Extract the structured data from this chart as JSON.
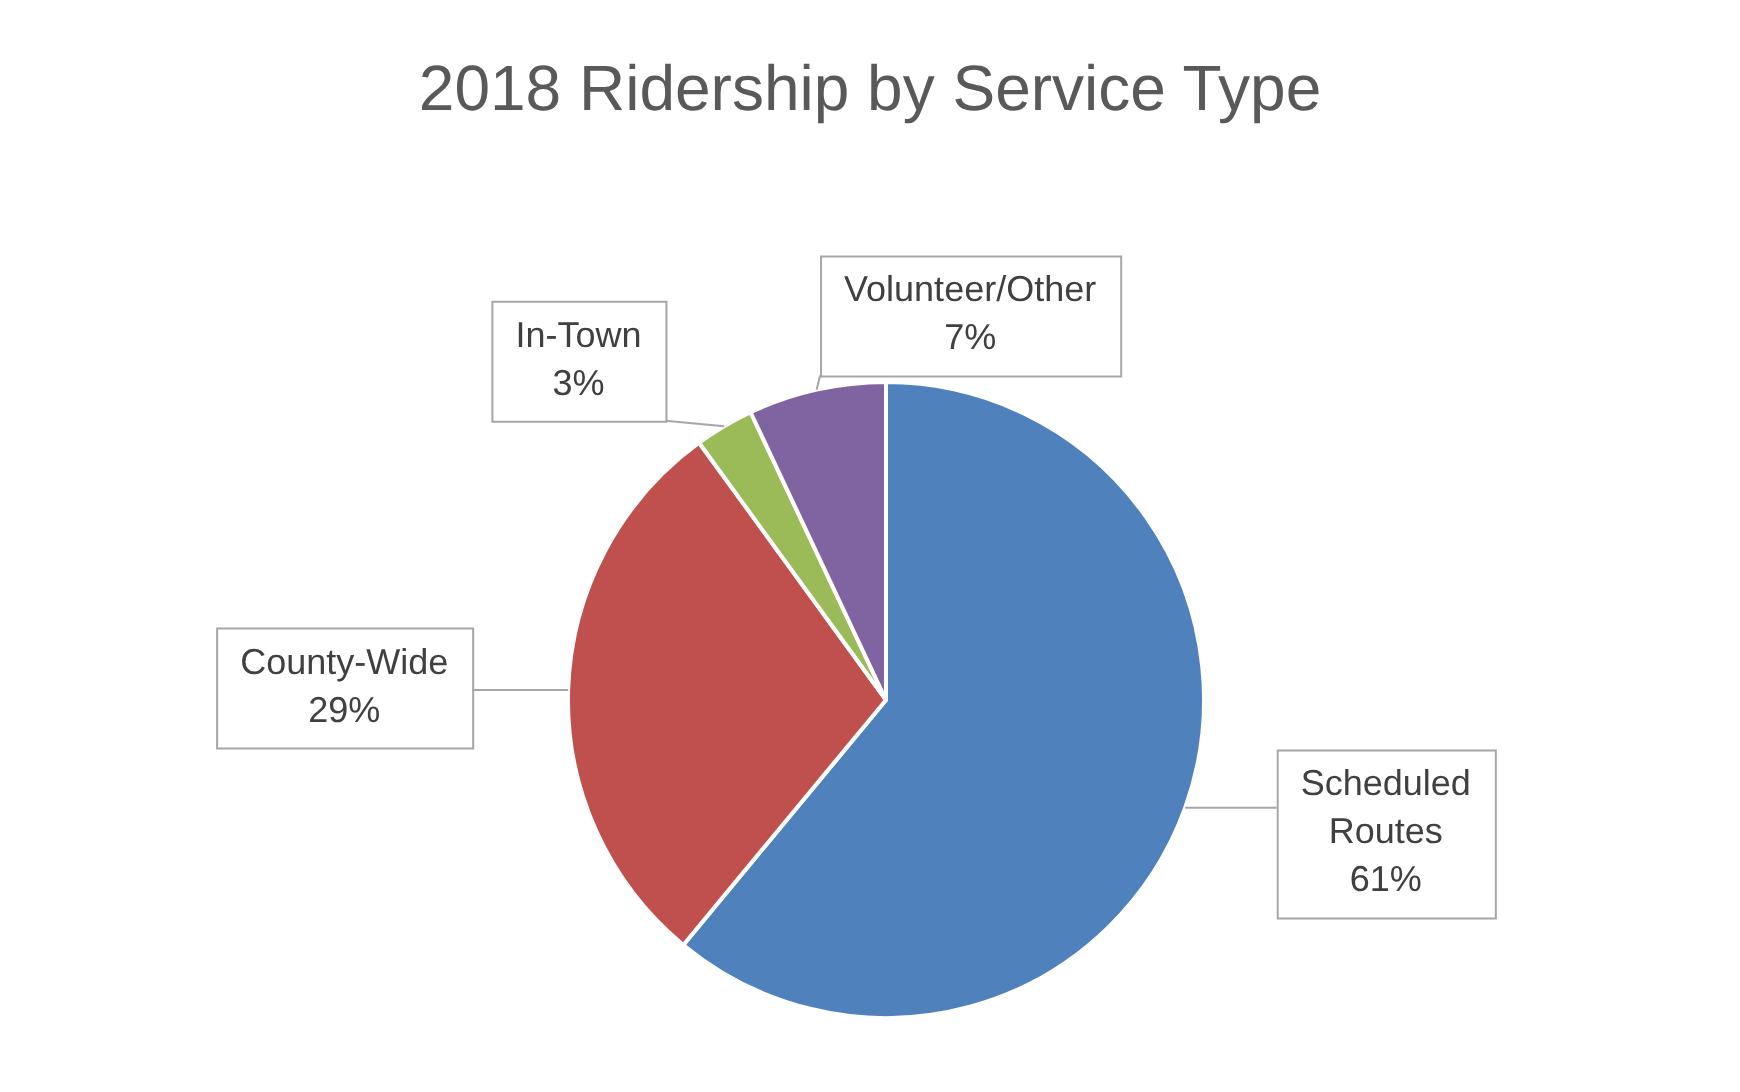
{
  "chart_data": {
    "type": "pie",
    "title": "2018 Ridership by Service Type",
    "categories": [
      "Scheduled Routes",
      "County-Wide",
      "In-Town",
      "Volunteer/Other"
    ],
    "values": [
      61,
      29,
      3,
      7
    ],
    "colors": [
      "#4f81bd",
      "#c0504d",
      "#9bbb59",
      "#8064a2"
    ],
    "value_labels": [
      "61%",
      "29%",
      "3%",
      "7%"
    ],
    "legend": false
  }
}
